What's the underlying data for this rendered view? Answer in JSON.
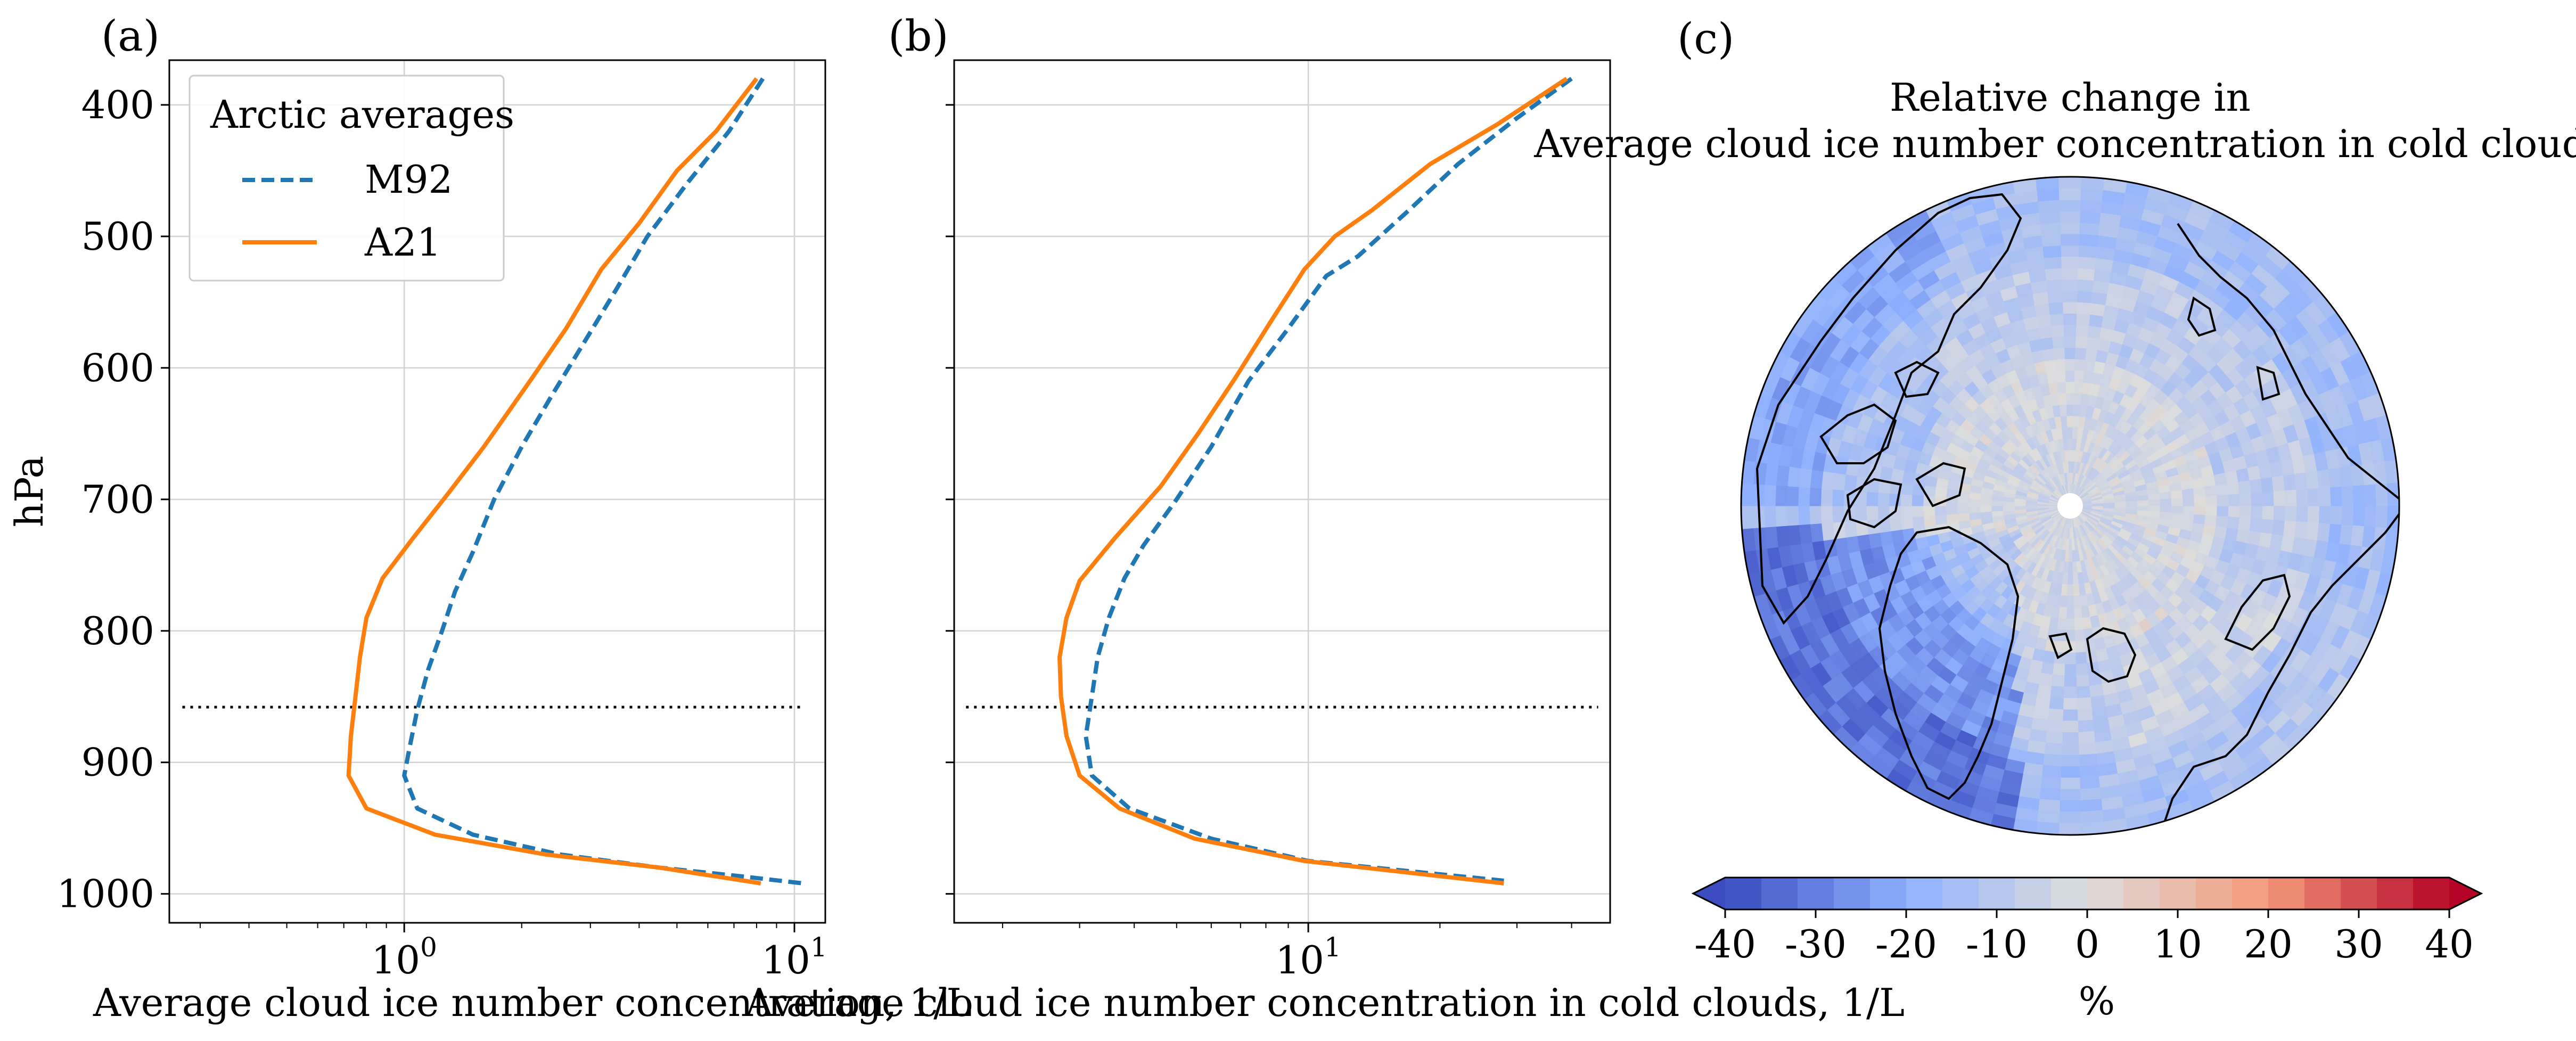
{
  "panels": {
    "a": {
      "label": "(a)"
    },
    "b": {
      "label": "(b)"
    },
    "c": {
      "label": "(c)",
      "title_line1": "Relative change in",
      "title_line2": "Average cloud ice number concentration in cold clouds"
    }
  },
  "colors": {
    "m92": "#1f77b4",
    "a21": "#ff7f0e",
    "axis": "#000000",
    "grid": "#d3d3d3",
    "reference_line": "#000000"
  },
  "chart_data": [
    {
      "panel": "a",
      "type": "line",
      "xlabel": "Average cloud ice number concentration, 1/L",
      "ylabel": "hPa",
      "x_scale": "log",
      "y_inverted": true,
      "xlim": [
        0.25,
        12
      ],
      "ylim": [
        1022,
        366
      ],
      "xticks": [
        {
          "v": 1,
          "base": "10",
          "exp": "0"
        },
        {
          "v": 10,
          "base": "10",
          "exp": "1"
        }
      ],
      "yticks": [
        400,
        500,
        600,
        700,
        800,
        900,
        1000
      ],
      "grid": true,
      "legend": {
        "title": "Arctic averages",
        "position": "top-left"
      },
      "reference_line": {
        "y": 858,
        "x_range": [
          0.27,
          10.5
        ],
        "style": "dotted"
      },
      "series": [
        {
          "name": "M92",
          "style": "dashed",
          "points": [
            [
              8.3,
              380
            ],
            [
              6.8,
              420
            ],
            [
              5.3,
              460
            ],
            [
              4.2,
              500
            ],
            [
              3.5,
              540
            ],
            [
              2.9,
              580
            ],
            [
              2.4,
              620
            ],
            [
              2.0,
              660
            ],
            [
              1.7,
              700
            ],
            [
              1.5,
              740
            ],
            [
              1.35,
              770
            ],
            [
              1.25,
              800
            ],
            [
              1.15,
              830
            ],
            [
              1.08,
              860
            ],
            [
              1.03,
              890
            ],
            [
              1.0,
              910
            ],
            [
              1.08,
              935
            ],
            [
              1.5,
              955
            ],
            [
              2.5,
              970
            ],
            [
              4.5,
              980
            ],
            [
              7.5,
              987
            ],
            [
              10.5,
              992
            ]
          ]
        },
        {
          "name": "A21",
          "style": "solid",
          "points": [
            [
              8.0,
              380
            ],
            [
              6.3,
              420
            ],
            [
              5.0,
              450
            ],
            [
              4.0,
              490
            ],
            [
              3.2,
              525
            ],
            [
              2.6,
              570
            ],
            [
              2.1,
              610
            ],
            [
              1.6,
              660
            ],
            [
              1.3,
              695
            ],
            [
              1.05,
              730
            ],
            [
              0.88,
              760
            ],
            [
              0.8,
              790
            ],
            [
              0.77,
              820
            ],
            [
              0.75,
              850
            ],
            [
              0.73,
              880
            ],
            [
              0.72,
              910
            ],
            [
              0.8,
              935
            ],
            [
              1.2,
              955
            ],
            [
              2.3,
              970
            ],
            [
              4.5,
              980
            ],
            [
              8.2,
              992
            ]
          ]
        }
      ]
    },
    {
      "panel": "b",
      "type": "line",
      "xlabel": "Average cloud ice number concentration in cold clouds, 1/L",
      "x_scale": "log",
      "y_inverted": true,
      "xlim": [
        1.55,
        49
      ],
      "ylim": [
        1022,
        366
      ],
      "xticks": [
        {
          "v": 10,
          "base": "10",
          "exp": "1"
        }
      ],
      "yticks": [
        400,
        500,
        600,
        700,
        800,
        900,
        1000
      ],
      "grid": true,
      "reference_line": {
        "y": 858,
        "x_range": [
          1.65,
          46
        ],
        "style": "dotted"
      },
      "series": [
        {
          "name": "M92",
          "style": "dashed",
          "points": [
            [
              40,
              380
            ],
            [
              30,
              410
            ],
            [
              22,
              445
            ],
            [
              17,
              480
            ],
            [
              13,
              515
            ],
            [
              11,
              530
            ],
            [
              9,
              570
            ],
            [
              7.3,
              610
            ],
            [
              6.0,
              660
            ],
            [
              5.0,
              700
            ],
            [
              4.2,
              735
            ],
            [
              3.8,
              760
            ],
            [
              3.5,
              790
            ],
            [
              3.3,
              820
            ],
            [
              3.2,
              850
            ],
            [
              3.1,
              880
            ],
            [
              3.2,
              910
            ],
            [
              3.9,
              935
            ],
            [
              6.0,
              958
            ],
            [
              10,
              975
            ],
            [
              28,
              990
            ]
          ]
        },
        {
          "name": "A21",
          "style": "solid",
          "points": [
            [
              39,
              380
            ],
            [
              27,
              415
            ],
            [
              19,
              445
            ],
            [
              14,
              480
            ],
            [
              11.5,
              500
            ],
            [
              9.8,
              525
            ],
            [
              8.2,
              565
            ],
            [
              6.8,
              608
            ],
            [
              5.6,
              650
            ],
            [
              4.6,
              690
            ],
            [
              3.6,
              730
            ],
            [
              3.0,
              762
            ],
            [
              2.8,
              790
            ],
            [
              2.7,
              820
            ],
            [
              2.72,
              850
            ],
            [
              2.8,
              880
            ],
            [
              3.0,
              910
            ],
            [
              3.7,
              935
            ],
            [
              5.5,
              958
            ],
            [
              9.8,
              975
            ],
            [
              28,
              992
            ]
          ]
        }
      ]
    },
    {
      "panel": "c",
      "type": "heatmap",
      "projection": "north-polar-stereographic",
      "colorbar": {
        "label": "%",
        "min": -40,
        "max": 40,
        "levels": 20,
        "extend": "both",
        "ticks": [
          -40,
          -30,
          -20,
          -10,
          0,
          10,
          20,
          30,
          40
        ],
        "tick_labels": [
          "-40",
          "-30",
          "-20",
          "-10",
          "0",
          "10",
          "20",
          "30",
          "40"
        ]
      }
    }
  ]
}
